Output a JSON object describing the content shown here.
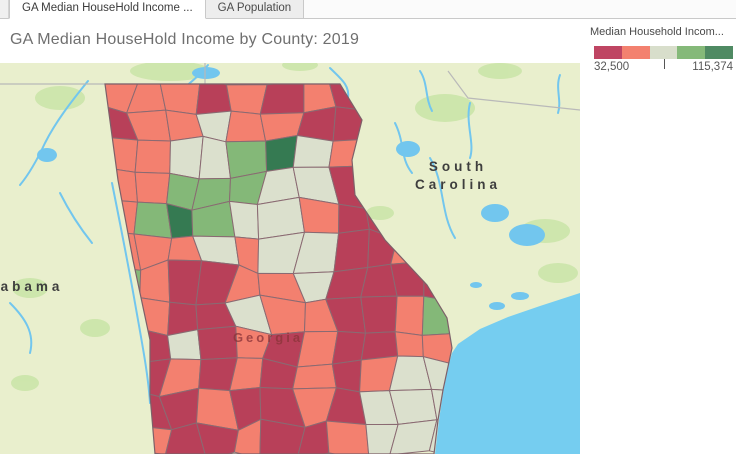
{
  "tabs": [
    {
      "label": "GA Median HouseHold Income ..."
    },
    {
      "label": "GA Population"
    }
  ],
  "title": "GA Median HouseHold Income by County: 2019",
  "legend": {
    "title": "Median Household Incom...",
    "min_label": "32,500",
    "max_label": "115,374",
    "colors": [
      "#bf4563",
      "#f3816f",
      "#d8decb",
      "#85b979",
      "#4f8a63"
    ]
  },
  "map": {
    "labels": {
      "state": "Georgia",
      "south_carolina_line1": "South",
      "south_carolina_line2": "Carolina",
      "alabama": "abama"
    },
    "colors": {
      "R": "#b84059",
      "S": "#f3806f",
      "P": "#dbe0cd",
      "G": "#84b878",
      "D": "#357a52"
    },
    "county_grid": [
      "SSSRSRSRRSS",
      "RSSPSSRRRSS",
      "SSPPGDPSRRS",
      "SSGGGPPRGSS",
      "SGDGPPSRRGS",
      "SSSPSPPRRSS",
      "GSRRSSPRRRR",
      "SSRRPSSRRSG",
      "RRPRSRSRRSS",
      "RRSRSRSRSPP",
      "RRRSRRSRPPP",
      "RSRRSRRSPPP"
    ],
    "base_colors": {
      "land": "#e9efcd",
      "ocean": "#75cdf0",
      "water": "#72c6ee",
      "vegetation": "#c4e3a1",
      "county_border": "#8a6a72"
    }
  },
  "chart_data": {
    "type": "heatmap",
    "title": "GA Median HouseHold Income by County: 2019",
    "legend_title": "Median Household Incom...",
    "color_scale": {
      "min": 32500,
      "max": 115374,
      "colors": [
        "#bf4563",
        "#f3816f",
        "#d8decb",
        "#85b979",
        "#4f8a63"
      ]
    },
    "region": "Georgia counties choropleth"
  }
}
